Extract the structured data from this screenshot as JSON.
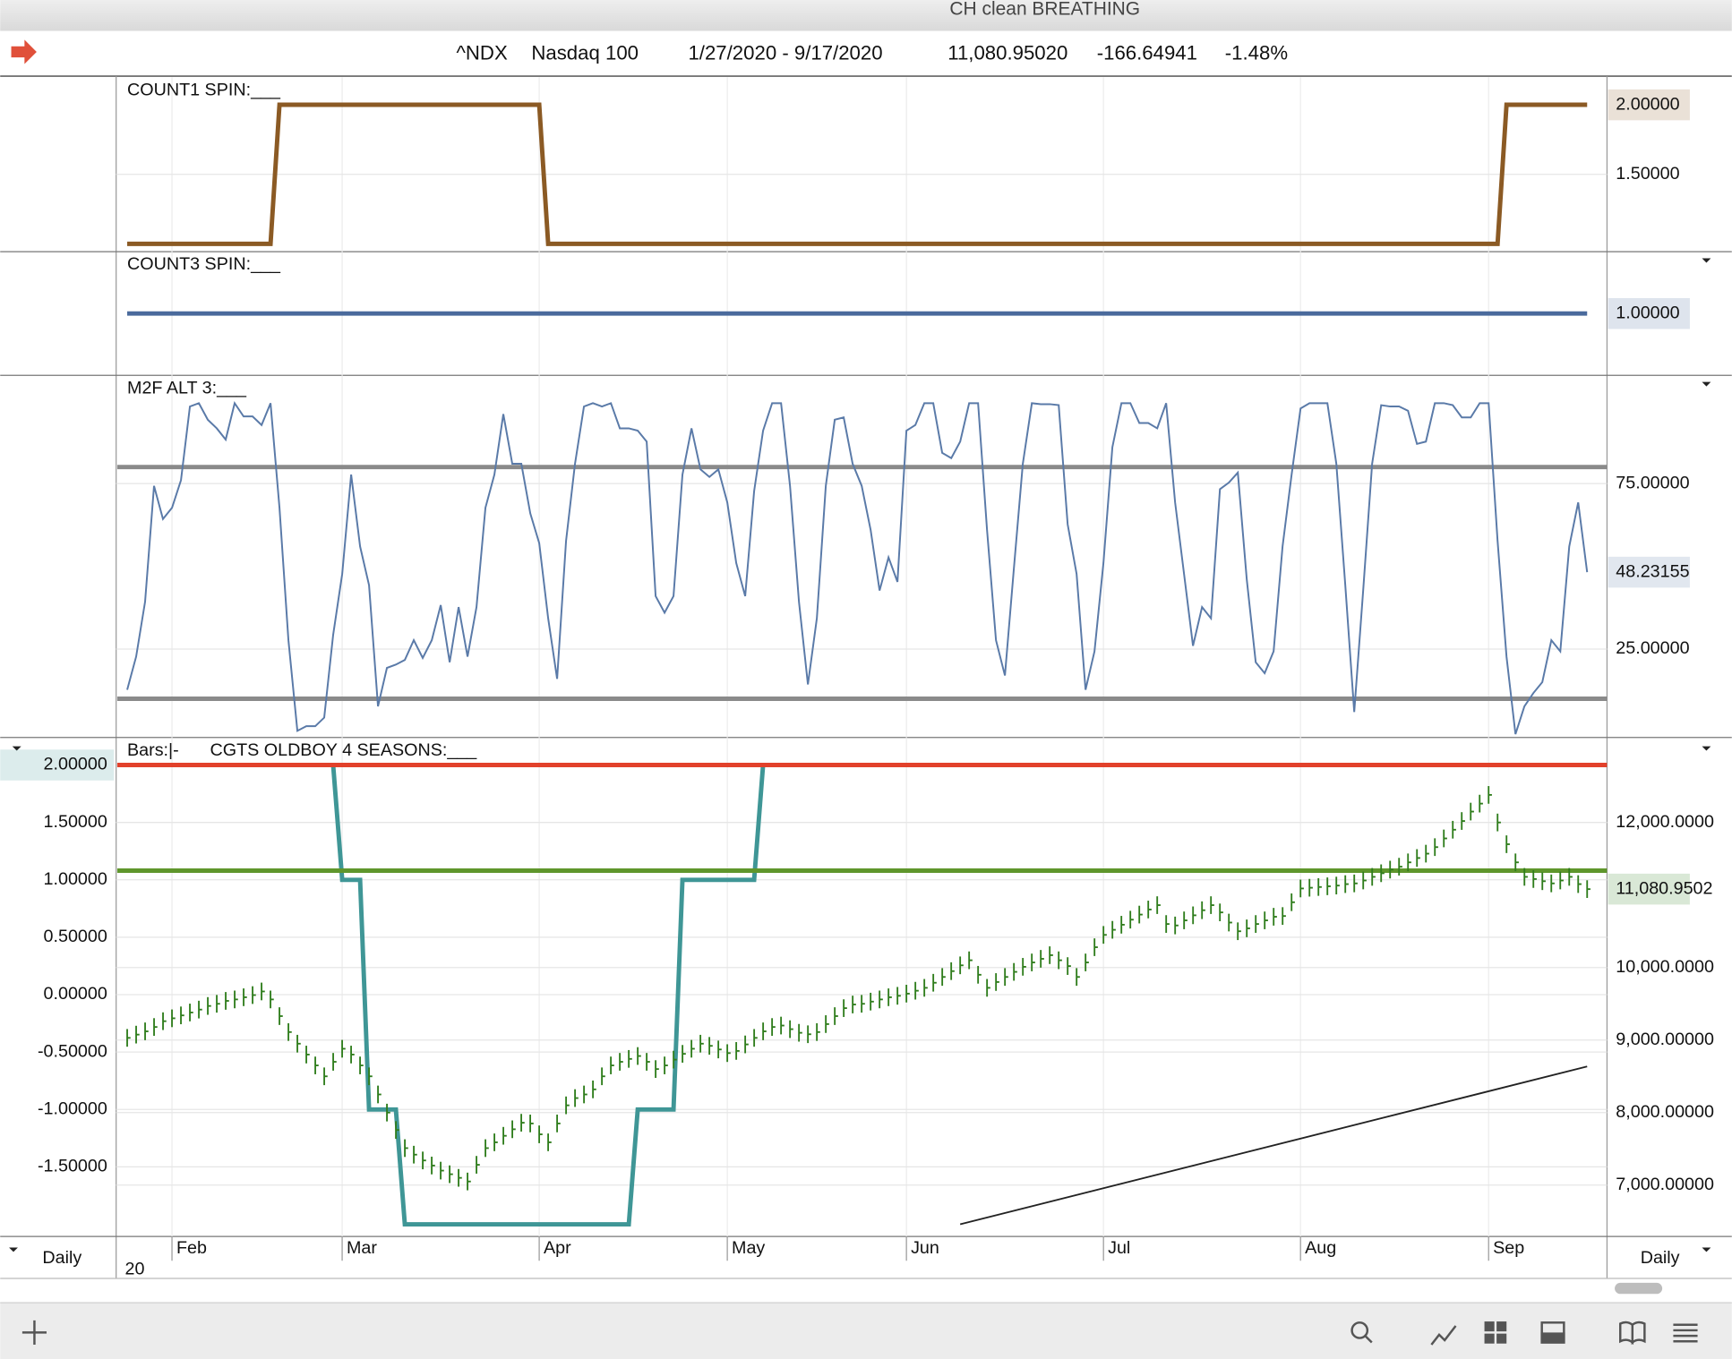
{
  "window": {
    "title": "CH clean BREATHING"
  },
  "header": {
    "symbol": "^NDX",
    "name": "Nasdaq 100",
    "range": "1/27/2020 - 9/17/2020",
    "last": "11,080.95020",
    "change": "-166.64941",
    "change_pct": "-1.48%"
  },
  "time_axis": {
    "months": [
      "Feb",
      "Mar",
      "Apr",
      "May",
      "Jun",
      "Jul",
      "Aug",
      "Sep"
    ],
    "x": [
      5,
      24,
      46,
      67,
      87,
      109,
      131,
      152
    ],
    "year": "20",
    "interval": "Daily"
  },
  "chart_data": [
    {
      "type": "line",
      "title": "COUNT1 SPIN:___",
      "color": "#8b5a24",
      "values": [
        1,
        1,
        1,
        1,
        1,
        1,
        1,
        1,
        1,
        1,
        1,
        1,
        1,
        1,
        1,
        1,
        1,
        2,
        2,
        2,
        2,
        2,
        2,
        2,
        2,
        2,
        2,
        2,
        2,
        2,
        2,
        2,
        2,
        2,
        2,
        2,
        2,
        2,
        2,
        2,
        2,
        2,
        2,
        2,
        2,
        2,
        2,
        1,
        1,
        1,
        1,
        1,
        1,
        1,
        1,
        1,
        1,
        1,
        1,
        1,
        1,
        1,
        1,
        1,
        1,
        1,
        1,
        1,
        1,
        1,
        1,
        1,
        1,
        1,
        1,
        1,
        1,
        1,
        1,
        1,
        1,
        1,
        1,
        1,
        1,
        1,
        1,
        1,
        1,
        1,
        1,
        1,
        1,
        1,
        1,
        1,
        1,
        1,
        1,
        1,
        1,
        1,
        1,
        1,
        1,
        1,
        1,
        1,
        1,
        1,
        1,
        1,
        1,
        1,
        1,
        1,
        1,
        1,
        1,
        1,
        1,
        1,
        1,
        1,
        1,
        1,
        1,
        1,
        1,
        1,
        1,
        1,
        1,
        1,
        1,
        1,
        1,
        1,
        1,
        1,
        1,
        1,
        1,
        1,
        1,
        1,
        1,
        1,
        1,
        1,
        1,
        1,
        1,
        1,
        2,
        2,
        2,
        2,
        2,
        2,
        2,
        2,
        2,
        2
      ],
      "ylim": [
        0.944,
        2.198
      ],
      "yticks": [
        {
          "value": 1.5,
          "label": "1.50000"
        }
      ],
      "last_label": "2.00000"
    },
    {
      "type": "line",
      "title": "COUNT3 SPIN:___",
      "color": "#4a6a9c",
      "values": [
        1,
        1,
        1,
        1,
        1,
        1,
        1,
        1,
        1,
        1,
        1,
        1,
        1,
        1,
        1,
        1,
        1,
        1,
        1,
        1,
        1,
        1,
        1,
        1,
        1,
        1,
        1,
        1,
        1,
        1,
        1,
        1,
        1,
        1,
        1,
        1,
        1,
        1,
        1,
        1,
        1,
        1,
        1,
        1,
        1,
        1,
        1,
        1,
        1,
        1,
        1,
        1,
        1,
        1,
        1,
        1,
        1,
        1,
        1,
        1,
        1,
        1,
        1,
        1,
        1,
        1,
        1,
        1,
        1,
        1,
        1,
        1,
        1,
        1,
        1,
        1,
        1,
        1,
        1,
        1,
        1,
        1,
        1,
        1,
        1,
        1,
        1,
        1,
        1,
        1,
        1,
        1,
        1,
        1,
        1,
        1,
        1,
        1,
        1,
        1,
        1,
        1,
        1,
        1,
        1,
        1,
        1,
        1,
        1,
        1,
        1,
        1,
        1,
        1,
        1,
        1,
        1,
        1,
        1,
        1,
        1,
        1,
        1,
        1,
        1,
        1,
        1,
        1,
        1,
        1,
        1,
        1,
        1,
        1,
        1,
        1,
        1,
        1,
        1,
        1,
        1,
        1,
        1,
        1,
        1,
        1,
        1,
        1,
        1,
        1,
        1,
        1,
        1,
        1,
        1,
        1,
        1,
        1,
        1,
        1,
        1,
        1,
        1,
        1
      ],
      "ylim": [
        0.43,
        1.57
      ],
      "last_label": "1.00000"
    },
    {
      "type": "line",
      "title": "M2F ALT 3:___",
      "color": "#5a7aa8",
      "values": [
        12.7,
        22.7,
        39.3,
        74.3,
        64.3,
        67.7,
        76,
        98.3,
        99.3,
        94.3,
        91.7,
        88.3,
        99.3,
        95.3,
        95.3,
        92.7,
        99.3,
        67.7,
        27.7,
        0.3,
        1.7,
        1.7,
        4.3,
        29.3,
        47.7,
        77.7,
        56,
        44.3,
        7.7,
        19.3,
        20.3,
        21.7,
        27.7,
        22.3,
        27.7,
        38.3,
        21,
        37.7,
        22.7,
        37.7,
        67.7,
        77.7,
        96,
        81,
        81,
        66,
        57,
        34.3,
        16,
        57.7,
        81,
        98.3,
        99.3,
        98.3,
        99.3,
        91.7,
        91.7,
        91,
        87.7,
        41,
        36,
        41,
        77.7,
        91.7,
        79.3,
        77,
        79.3,
        69.3,
        51,
        41,
        72.7,
        91,
        99.3,
        99.3,
        74.3,
        39.3,
        14.3,
        34.3,
        74.3,
        94.3,
        95,
        81,
        74.3,
        61,
        42.7,
        52.7,
        45.3,
        91,
        92.7,
        99.3,
        99.3,
        84.3,
        82.7,
        87.7,
        99.3,
        99.3,
        61,
        27.7,
        17,
        49.3,
        81,
        99.3,
        99,
        99,
        98.7,
        62.7,
        47.7,
        12.7,
        24.3,
        51,
        86,
        99.3,
        99.3,
        93.3,
        93.3,
        91.7,
        99.3,
        69.3,
        47.7,
        26,
        37.7,
        34.3,
        73.3,
        75.3,
        78.3,
        46,
        21,
        17.7,
        24.3,
        56,
        77.7,
        97.7,
        99.3,
        99.3,
        99.3,
        81,
        44.3,
        6,
        42.7,
        81,
        98.7,
        98.3,
        98.3,
        97,
        87,
        87.7,
        99.3,
        99.3,
        98.7,
        95,
        95,
        99.3,
        99.3,
        57.7,
        22.7,
        -0.7,
        7.7,
        11.7,
        15,
        27.7,
        24.3,
        56,
        69.3,
        48.23155
      ],
      "ylim": [
        -1.7,
        107.7
      ],
      "yticks": [
        {
          "value": 25,
          "label": "25.00000"
        },
        {
          "value": 75,
          "label": "75.00000"
        }
      ],
      "levels": [
        80,
        10
      ],
      "level_color": "#8a8a8a",
      "last_label": "48.23155"
    },
    {
      "type": "combo",
      "subtitle": "Bars:|-",
      "title": "CGTS OLDBOY 4 SEASONS:___",
      "series": [
        {
          "type": "line",
          "color": "#3f9696",
          "axis": "y",
          "values": [
            2,
            2,
            2,
            2,
            2,
            2,
            2,
            2,
            2,
            2,
            2,
            2,
            2,
            2,
            2,
            2,
            2,
            2,
            2,
            2,
            2,
            2,
            2,
            2,
            1,
            1,
            1,
            -1,
            -1,
            -1,
            -1,
            -2,
            -2,
            -2,
            -2,
            -2,
            -2,
            -2,
            -2,
            -2,
            -2,
            -2,
            -2,
            -2,
            -2,
            -2,
            -2,
            -2,
            -2,
            -2,
            -2,
            -2,
            -2,
            -2,
            -2,
            -2,
            -2,
            -1,
            -1,
            -1,
            -1,
            -1,
            1,
            1,
            1,
            1,
            1,
            1,
            1,
            1,
            1,
            2,
            2,
            2,
            2,
            2,
            2,
            2,
            2,
            2,
            2,
            2,
            2,
            2,
            2,
            2,
            2,
            2,
            2,
            2,
            2,
            2,
            2,
            2,
            2,
            2,
            2,
            2,
            2,
            2,
            2,
            2,
            2,
            2,
            2,
            2,
            2,
            2,
            2,
            2,
            2,
            2,
            2,
            2,
            2,
            2,
            2,
            2,
            2,
            2,
            2,
            2,
            2,
            2,
            2,
            2,
            2,
            2,
            2,
            2,
            2,
            2,
            2,
            2,
            2,
            2,
            2,
            2,
            2,
            2,
            2,
            2,
            2,
            2,
            2,
            2,
            2,
            2,
            2,
            2,
            2,
            2,
            2,
            2,
            2,
            2,
            2,
            2,
            2,
            2,
            2,
            2,
            2,
            2
          ]
        },
        {
          "type": "bar",
          "color": "#2f7d1c",
          "axis": "y2",
          "values": [
            9030,
            9075,
            9120,
            9180,
            9260,
            9300,
            9340,
            9380,
            9420,
            9470,
            9500,
            9540,
            9560,
            9590,
            9620,
            9670,
            9560,
            9330,
            9110,
            8950,
            8800,
            8650,
            8500,
            8700,
            8880,
            8800,
            8650,
            8500,
            8250,
            8000,
            7760,
            7510,
            7420,
            7340,
            7270,
            7200,
            7150,
            7100,
            7050,
            7280,
            7510,
            7590,
            7680,
            7770,
            7860,
            7850,
            7700,
            7590,
            7850,
            8100,
            8200,
            8250,
            8320,
            8500,
            8650,
            8700,
            8740,
            8780,
            8700,
            8600,
            8650,
            8730,
            8810,
            8880,
            8950,
            8920,
            8870,
            8820,
            8850,
            8940,
            9030,
            9120,
            9180,
            9200,
            9150,
            9100,
            9080,
            9110,
            9220,
            9330,
            9440,
            9490,
            9500,
            9530,
            9560,
            9590,
            9610,
            9640,
            9680,
            9720,
            9790,
            9870,
            9950,
            10030,
            10100,
            9900,
            9720,
            9800,
            9870,
            9940,
            10010,
            10070,
            10120,
            10170,
            10100,
            10020,
            9870,
            10070,
            10280,
            10450,
            10520,
            10590,
            10660,
            10730,
            10800,
            10860,
            10600,
            10580,
            10650,
            10720,
            10790,
            10860,
            10760,
            10620,
            10500,
            10540,
            10600,
            10650,
            10700,
            10710,
            10900,
            11090,
            11100,
            11110,
            11120,
            11130,
            11150,
            11160,
            11200,
            11250,
            11300,
            11350,
            11390,
            11450,
            11510,
            11570,
            11660,
            11780,
            11900,
            12020,
            12150,
            12260,
            12380,
            12000,
            11700,
            11450,
            11250,
            11220,
            11190,
            11160,
            11200,
            11250,
            11150,
            11080.95
          ]
        }
      ],
      "ylim": [
        -2.106,
        2.24
      ],
      "yticks": [
        {
          "value": 1.5,
          "label": "1.50000"
        },
        {
          "value": 1,
          "label": "1.00000"
        },
        {
          "value": 0.5,
          "label": "0.50000"
        },
        {
          "value": 0,
          "label": "0.00000"
        },
        {
          "value": -0.5,
          "label": "-0.50000"
        },
        {
          "value": -1,
          "label": "-1.00000"
        },
        {
          "value": -1.5,
          "label": "-1.50000"
        }
      ],
      "y2lim": [
        6292,
        13172
      ],
      "y2ticks": [
        {
          "value": 12000,
          "label": "12,000.0000"
        },
        {
          "value": 10000,
          "label": "10,000.0000"
        },
        {
          "value": 9000,
          "label": "9,000.00000"
        },
        {
          "value": 8000,
          "label": "8,000.00000"
        },
        {
          "value": 7000,
          "label": "7,000.00000"
        }
      ],
      "levels": [
        {
          "value": 2,
          "color": "#e2412b"
        },
        {
          "value": 1.08,
          "color": "#5f962c"
        }
      ],
      "trendline": {
        "x": [
          93,
          163
        ],
        "values": [
          6460,
          8636
        ],
        "color": "#222"
      },
      "last_label": "2.00000",
      "y2_last_label": "11,080.9502"
    }
  ]
}
